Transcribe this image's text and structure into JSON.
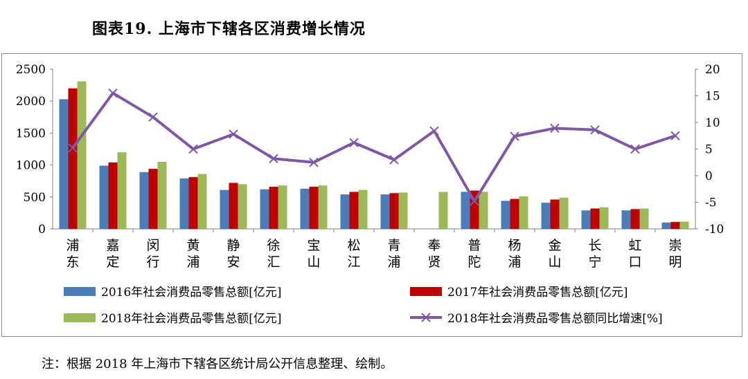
{
  "title": "图表19. 上海市下辖各区消费增长情况",
  "note": "注：根据 2018 年上海市下辖各区统计局公开信息整理、绘制。",
  "colors": {
    "series2016": "#4a7ebb",
    "series2017": "#c00000",
    "series2018": "#9bbb59",
    "growth": "#7e58a6"
  },
  "chart_data": {
    "type": "bar",
    "categories": [
      "浦东",
      "嘉定",
      "闵行",
      "黄浦",
      "静安",
      "徐汇",
      "宝山",
      "松江",
      "青浦",
      "奉贤",
      "普陀",
      "杨浦",
      "金山",
      "长宁",
      "虹口",
      "崇明"
    ],
    "category_lines": [
      [
        "浦",
        "东"
      ],
      [
        "嘉",
        "定"
      ],
      [
        "闵",
        "行"
      ],
      [
        "黄",
        "浦"
      ],
      [
        "静",
        "安"
      ],
      [
        "徐",
        "汇"
      ],
      [
        "宝",
        "山"
      ],
      [
        "松",
        "江"
      ],
      [
        "青",
        "浦"
      ],
      [
        "奉",
        "贤"
      ],
      [
        "普",
        "陀"
      ],
      [
        "杨",
        "浦"
      ],
      [
        "金",
        "山"
      ],
      [
        "长",
        "宁"
      ],
      [
        "虹",
        "口"
      ],
      [
        "崇",
        "明"
      ]
    ],
    "series": [
      {
        "name": "2016年社会消费品零售总额[亿元]",
        "axis": "left",
        "type": "bar",
        "values": [
          2030,
          990,
          890,
          790,
          610,
          620,
          630,
          540,
          540,
          null,
          580,
          440,
          410,
          290,
          290,
          100
        ]
      },
      {
        "name": "2017年社会消费品零售总额[亿元]",
        "axis": "left",
        "type": "bar",
        "values": [
          2200,
          1040,
          940,
          810,
          720,
          660,
          660,
          580,
          560,
          null,
          600,
          470,
          460,
          320,
          310,
          110
        ]
      },
      {
        "name": "2018年社会消费品零售总额[亿元]",
        "axis": "left",
        "type": "bar",
        "values": [
          2310,
          1200,
          1050,
          860,
          700,
          680,
          680,
          610,
          570,
          580,
          580,
          510,
          490,
          340,
          320,
          115
        ]
      },
      {
        "name": "2018年社会消费品零售总额同比增速[%]",
        "axis": "right",
        "type": "line",
        "values": [
          5.2,
          15.5,
          11.0,
          5.0,
          7.8,
          3.2,
          2.5,
          6.2,
          3.0,
          8.4,
          -4.8,
          7.4,
          8.9,
          8.6,
          5.0,
          7.5
        ]
      }
    ],
    "ylim": [
      0,
      2500
    ],
    "yticks": [
      "2500",
      "2000",
      "1500",
      "1000",
      "500",
      "0"
    ],
    "y2lim": [
      -10,
      20
    ],
    "y2ticks": [
      "20",
      "15",
      "10",
      "5",
      "0",
      "-5",
      "-10"
    ],
    "legend": "bottom"
  }
}
